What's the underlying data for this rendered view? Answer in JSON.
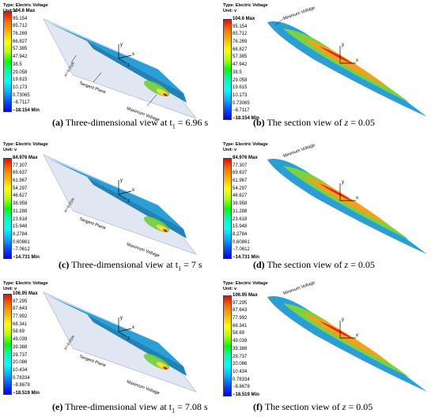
{
  "header": {
    "type_label": "Type: Electric Voltage",
    "unit_label": "Unit: v"
  },
  "annotations": {
    "minimum_voltage": "Minimum Voltage",
    "maximum_voltage": "Maximum Voltage",
    "tangent_plane": "Tangent Plane",
    "x_offset": "x=-0.01m",
    "axis_x": "x",
    "axis_y": "y",
    "axis_z": "z"
  },
  "panels": [
    {
      "id": "a",
      "letter": "(a)",
      "caption_text": "Three-dimensional view at t",
      "subscript": "1",
      "caption_value": " = 6.96 s",
      "legend": [
        "104.6 Max",
        "95.154",
        "85.712",
        "76.269",
        "66.827",
        "57.385",
        "47.942",
        "38.5",
        "29.058",
        "19.615",
        "10.173",
        "0.73065",
        "−8.7117",
        "−18.154 Min"
      ]
    },
    {
      "id": "b",
      "letter": "(b)",
      "caption_text": "The section view of",
      "z_label": "z",
      "caption_value": " = 0.05",
      "legend": [
        "104.6 Max",
        "95.154",
        "85.712",
        "76.269",
        "66.827",
        "57.385",
        "47.942",
        "38.5",
        "29.058",
        "19.615",
        "10.173",
        "0.73065",
        "−8.7117",
        "−18.154 Min"
      ]
    },
    {
      "id": "c",
      "letter": "(c)",
      "caption_text": "Three-dimensional view at t",
      "subscript": "1",
      "caption_value": " = 7 s",
      "legend": [
        "84.976 Max",
        "77.307",
        "69.637",
        "61.967",
        "54.297",
        "46.627",
        "38.958",
        "31.288",
        "23.618",
        "15.948",
        "8.2784",
        "0.60861",
        "−7.0612",
        "−14.731 Min"
      ]
    },
    {
      "id": "d",
      "letter": "(d)",
      "caption_text": "The section view of",
      "z_label": "z",
      "caption_value": " = 0.05",
      "legend": [
        "84.976 Max",
        "77.307",
        "69.637",
        "61.967",
        "54.297",
        "46.627",
        "38.958",
        "31.288",
        "23.618",
        "15.948",
        "8.2784",
        "0.60861",
        "−7.0612",
        "−14.731 Min"
      ]
    },
    {
      "id": "e",
      "letter": "(e)",
      "caption_text": "Three-dimensional view at t",
      "subscript": "1",
      "caption_value": " = 7.08 s",
      "legend": [
        "106.95 Max",
        "97.295",
        "87.643",
        "77.992",
        "68.341",
        "58.69",
        "49.039",
        "39.388",
        "29.737",
        "20.086",
        "10.434",
        "0.78334",
        "−8.8678",
        "−18.519 Min"
      ]
    },
    {
      "id": "f",
      "letter": "(f)",
      "caption_text": "The section view of",
      "z_label": "z",
      "caption_value": " = 0.05",
      "legend": [
        "106.95 Max",
        "97.295",
        "87.643",
        "77.992",
        "68.341",
        "58.69",
        "49.039",
        "39.388",
        "29.737",
        "20.086",
        "10.434",
        "0.78334",
        "−8.8678",
        "−18.519 Min"
      ]
    }
  ]
}
